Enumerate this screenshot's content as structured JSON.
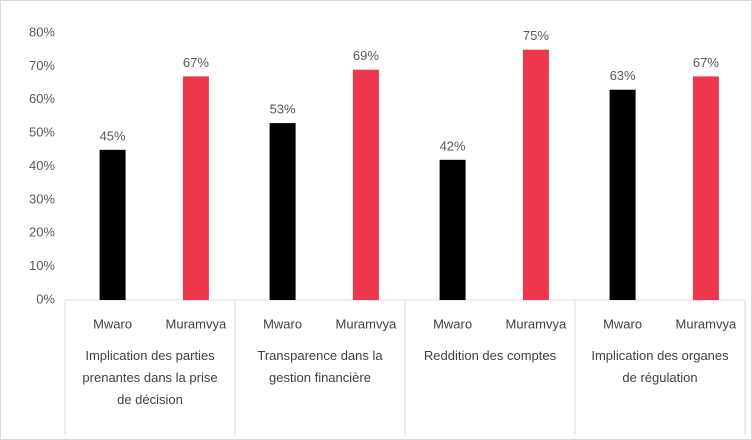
{
  "chart_data": {
    "type": "bar",
    "categories": [
      "Implication des parties prenantes dans la prise de décision",
      "Transparence dans la gestion financière",
      "Reddition des comptes",
      "Implication des organes de régulation"
    ],
    "series": [
      {
        "name": "Mwaro",
        "color": "#000000",
        "values": [
          45,
          53,
          42,
          63
        ],
        "value_labels": [
          "45%",
          "53%",
          "42%",
          "63%"
        ]
      },
      {
        "name": "Muramvya",
        "color": "#ee374d",
        "values": [
          67,
          69,
          75,
          67
        ],
        "value_labels": [
          "67%",
          "69%",
          "75%",
          "67%"
        ]
      }
    ],
    "ylim": [
      0,
      80
    ],
    "yticks": [
      {
        "value": 0,
        "label": "0%"
      },
      {
        "value": 10,
        "label": "10%"
      },
      {
        "value": 20,
        "label": "20%"
      },
      {
        "value": 30,
        "label": "30%"
      },
      {
        "value": 40,
        "label": "40%"
      },
      {
        "value": 50,
        "label": "50%"
      },
      {
        "value": 60,
        "label": "60%"
      },
      {
        "value": 70,
        "label": "70%"
      },
      {
        "value": 80,
        "label": "80%"
      }
    ],
    "grid": false
  }
}
